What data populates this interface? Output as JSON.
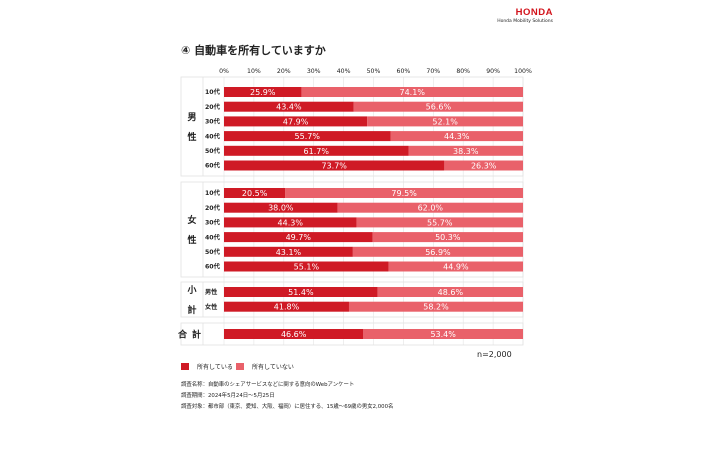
{
  "brand": {
    "logo": "HONDA",
    "subtitle": "Honda Mobility Solutions"
  },
  "title": "④ 自動車を所有していますか",
  "sample_size": "n=2,000",
  "colors": {
    "owned": "#cf1a25",
    "not_owned": "#e9616a"
  },
  "legend": {
    "owned": "所有している",
    "not_owned": "所有していない"
  },
  "notes": {
    "survey_name": "調査名称：自動車のシェアサービスなどに関する意向のWebアンケート",
    "period": "調査期間：2024年5月24日～5月25日",
    "target": "調査対象：都市部（東京、愛知、大阪、福岡）に居住する、15歳～69歳の男女2,000名"
  },
  "chart_data": {
    "type": "bar",
    "orientation": "horizontal",
    "stacked": true,
    "percent_stacked": true,
    "xlim": [
      0,
      100
    ],
    "x_ticks": [
      "0%",
      "10%",
      "20%",
      "30%",
      "40%",
      "50%",
      "60%",
      "70%",
      "80%",
      "90%",
      "100%"
    ],
    "series": [
      {
        "name": "所有している",
        "color": "#cf1a25"
      },
      {
        "name": "所有していない",
        "color": "#e9616a"
      }
    ],
    "groups": [
      {
        "label": "男性",
        "rows": [
          {
            "label": "10代",
            "values": [
              25.9,
              74.1
            ]
          },
          {
            "label": "20代",
            "values": [
              43.4,
              56.6
            ]
          },
          {
            "label": "30代",
            "values": [
              47.9,
              52.1
            ]
          },
          {
            "label": "40代",
            "values": [
              55.7,
              44.3
            ]
          },
          {
            "label": "50代",
            "values": [
              61.7,
              38.3
            ]
          },
          {
            "label": "60代",
            "values": [
              73.7,
              26.3
            ]
          }
        ]
      },
      {
        "label": "女性",
        "rows": [
          {
            "label": "10代",
            "values": [
              20.5,
              79.5
            ]
          },
          {
            "label": "20代",
            "values": [
              38.0,
              62.0
            ]
          },
          {
            "label": "30代",
            "values": [
              44.3,
              55.7
            ]
          },
          {
            "label": "40代",
            "values": [
              49.7,
              50.3
            ]
          },
          {
            "label": "50代",
            "values": [
              43.1,
              56.9
            ]
          },
          {
            "label": "60代",
            "values": [
              55.1,
              44.9
            ]
          }
        ]
      },
      {
        "label": "小計",
        "rows": [
          {
            "label": "男性",
            "values": [
              51.4,
              48.6
            ]
          },
          {
            "label": "女性",
            "values": [
              41.8,
              58.2
            ]
          }
        ]
      },
      {
        "label": "合計",
        "rows": [
          {
            "label": "",
            "values": [
              46.6,
              53.4
            ]
          }
        ]
      }
    ]
  }
}
